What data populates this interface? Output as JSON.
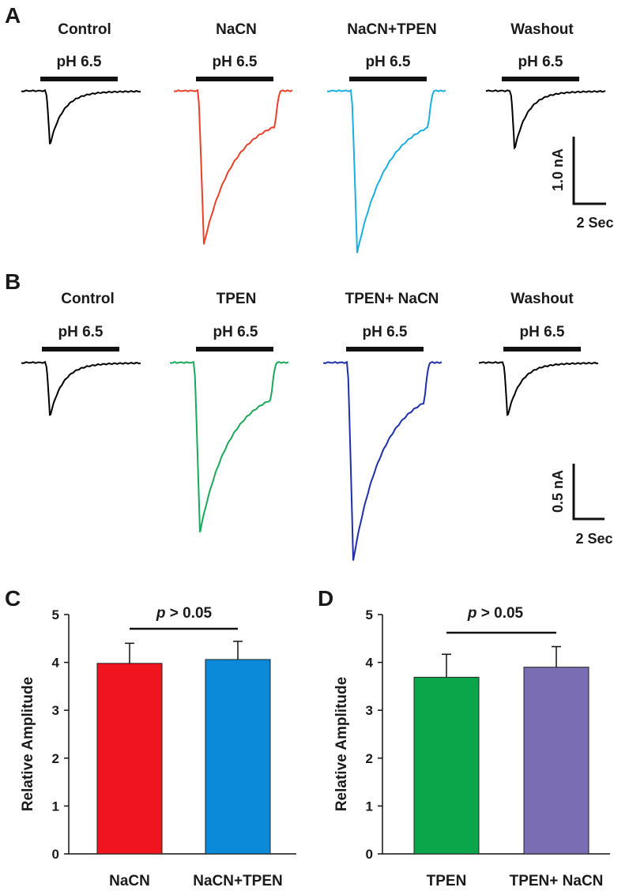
{
  "panels": {
    "A": {
      "letter": "A",
      "traces": [
        {
          "title": "Control",
          "stim": "pH 6.5",
          "color": "#000000",
          "peak": 0.6,
          "kind": "fast"
        },
        {
          "title": "NaCN",
          "stim": "pH 6.5",
          "color": "#e8412a",
          "peak": 1.75,
          "kind": "slow"
        },
        {
          "title": "NaCN+TPEN",
          "stim": "pH 6.5",
          "color": "#1aaee0",
          "peak": 1.85,
          "kind": "slow"
        },
        {
          "title": "Washout",
          "stim": "pH 6.5",
          "color": "#000000",
          "peak": 0.65,
          "kind": "fast"
        }
      ],
      "scale": {
        "y_label": "1.0 nA",
        "x_label": "2 Sec"
      }
    },
    "B": {
      "letter": "B",
      "traces": [
        {
          "title": "Control",
          "stim": "pH 6.5",
          "color": "#000000",
          "peak": 0.37,
          "kind": "fast"
        },
        {
          "title": "TPEN",
          "stim": "pH 6.5",
          "color": "#1aa85a",
          "peak": 1.2,
          "kind": "slow"
        },
        {
          "title": "TPEN+ NaCN",
          "stim": "pH 6.5",
          "color": "#1f2fa8",
          "peak": 1.4,
          "kind": "slow"
        },
        {
          "title": "Washout",
          "stim": "pH 6.5",
          "color": "#000000",
          "peak": 0.37,
          "kind": "fast"
        }
      ],
      "scale": {
        "y_label": "0.5 nA",
        "x_label": "2 Sec"
      }
    }
  },
  "chart_data": [
    {
      "panel": "C",
      "type": "bar",
      "categories": [
        "NaCN",
        "NaCN+TPEN"
      ],
      "values": [
        3.98,
        4.06
      ],
      "errors": [
        0.42,
        0.38
      ],
      "colors": [
        "#f0141e",
        "#0a8ad8"
      ],
      "ylabel": "Relative Amplitude",
      "ylim": [
        0,
        5
      ],
      "yticks": [
        0,
        1,
        2,
        3,
        4,
        5
      ],
      "annotation": {
        "p": "p",
        "text": " > 0.05"
      }
    },
    {
      "panel": "D",
      "type": "bar",
      "categories": [
        "TPEN",
        "TPEN+ NaCN"
      ],
      "values": [
        3.69,
        3.9
      ],
      "errors": [
        0.48,
        0.43
      ],
      "colors": [
        "#0ca64a",
        "#7a6db4"
      ],
      "ylabel": "Relative Amplitude",
      "ylim": [
        0,
        5
      ],
      "yticks": [
        0,
        1,
        2,
        3,
        4,
        5
      ],
      "annotation": {
        "p": "p",
        "text": " > 0.05"
      }
    }
  ]
}
